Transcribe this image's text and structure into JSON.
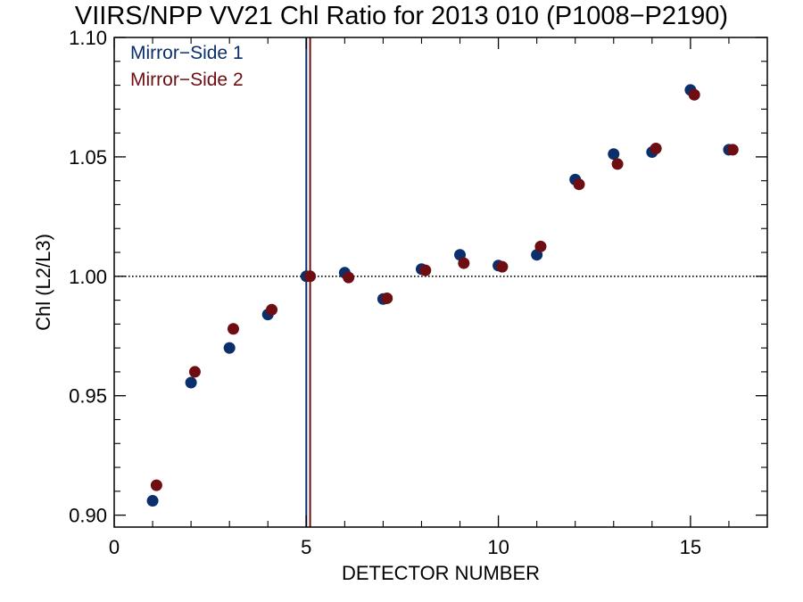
{
  "chart_data": {
    "type": "scatter",
    "title": "VIIRS/NPP VV21 Chl Ratio for 2013 010 (P1008−P2190)",
    "xlabel": "DETECTOR NUMBER",
    "ylabel": "Chl (L2/L3)",
    "xlim": [
      0,
      17
    ],
    "ylim": [
      0.895,
      1.1
    ],
    "x_ticks": [
      0,
      5,
      10,
      15
    ],
    "x_tick_labels": [
      "0",
      "5",
      "10",
      "15"
    ],
    "y_ticks": [
      0.9,
      0.95,
      1.0,
      1.05,
      1.1
    ],
    "y_tick_labels": [
      "0.90",
      "0.95",
      "1.00",
      "1.05",
      "1.10"
    ],
    "reference_line": {
      "y": 1.0,
      "style": "dotted"
    },
    "legend_position": "top-left",
    "series": [
      {
        "name": "Mirror−Side 1",
        "color": "#0b2f6b",
        "x": [
          1,
          2,
          3,
          4,
          5,
          6,
          7,
          8,
          9,
          10,
          11,
          12,
          13,
          14,
          15,
          16
        ],
        "y": [
          0.906,
          0.9555,
          0.97,
          0.984,
          1.0,
          1.0015,
          0.9905,
          1.003,
          1.009,
          1.0045,
          1.009,
          1.0405,
          1.0512,
          1.052,
          1.078,
          1.053
        ],
        "vline_x": 5.0
      },
      {
        "name": "Mirror−Side 2",
        "color": "#6e0e12",
        "x": [
          1.1,
          2.1,
          3.1,
          4.1,
          5.1,
          6.1,
          7.1,
          8.1,
          9.1,
          10.1,
          11.1,
          12.1,
          13.1,
          14.1,
          15.1,
          16.1
        ],
        "y": [
          0.9125,
          0.96,
          0.978,
          0.986,
          1.0,
          0.9995,
          0.9908,
          1.0025,
          1.0055,
          1.004,
          1.0125,
          1.0385,
          1.047,
          1.0535,
          1.076,
          1.053
        ],
        "vline_x": 5.1
      }
    ]
  }
}
